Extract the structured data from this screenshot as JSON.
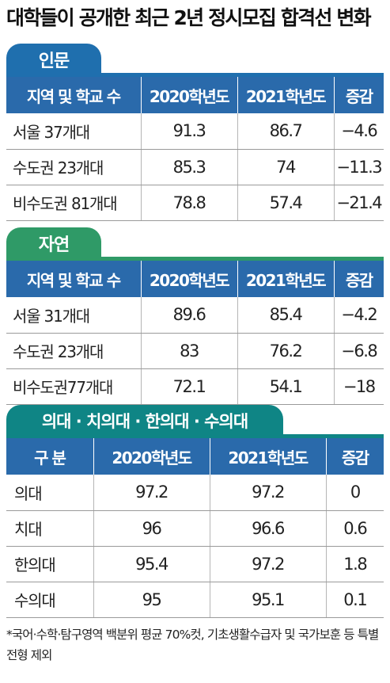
{
  "title": "대학들이 공개한 최근 2년 정시모집 합격선 변화",
  "columns": [
    "지역 및 학교 수",
    "2020학년도",
    "2021학년도",
    "증감"
  ],
  "columns_medical": [
    "구 분",
    "2020학년도",
    "2021학년도",
    "증감"
  ],
  "sections": [
    {
      "label": "인문",
      "color": "#1f6fae",
      "rows": [
        {
          "name": "서울 37개대",
          "y2020": "91.3",
          "y2021": "86.7",
          "change": "−4.6"
        },
        {
          "name": "수도권 23개대",
          "y2020": "85.3",
          "y2021": "74",
          "change": "−11.3"
        },
        {
          "name": "비수도권 81개대",
          "y2020": "78.8",
          "y2021": "57.4",
          "change": "−21.4"
        }
      ]
    },
    {
      "label": "자연",
      "color": "#2f9a67",
      "rows": [
        {
          "name": "서울 31개대",
          "y2020": "89.6",
          "y2021": "85.4",
          "change": "−4.2"
        },
        {
          "name": "수도권 23개대",
          "y2020": "83",
          "y2021": "76.2",
          "change": "−6.8"
        },
        {
          "name": "비수도권77개대",
          "y2020": "72.1",
          "y2021": "54.1",
          "change": "−18"
        }
      ]
    },
    {
      "label": "의대 · 치의대 · 한의대 · 수의대",
      "color": "#0f8585",
      "rows": [
        {
          "name": "의대",
          "y2020": "97.2",
          "y2021": "97.2",
          "change": "0"
        },
        {
          "name": "치대",
          "y2020": "96",
          "y2021": "96.6",
          "change": "0.6"
        },
        {
          "name": "한의대",
          "y2020": "95.4",
          "y2021": "97.2",
          "change": "1.8"
        },
        {
          "name": "수의대",
          "y2020": "95",
          "y2021": "95.1",
          "change": "0.1"
        }
      ]
    }
  ],
  "footnote": "*국어·수학·탐구영역 백분위 평균 70%컷, 기초생활수급자 및 국가보훈 등 특별전형 제외",
  "colors": {
    "header": "#2a6aab",
    "humanities": "#1f6fae",
    "science": "#2f9a67",
    "medical": "#0f8585"
  }
}
